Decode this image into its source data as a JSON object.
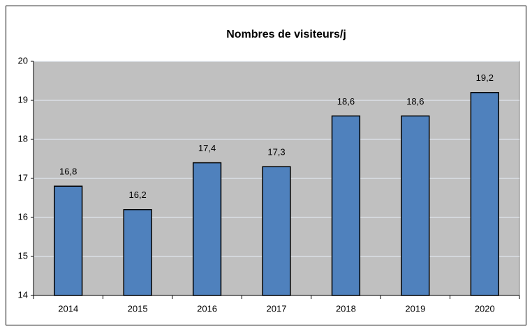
{
  "chart_data": {
    "type": "bar",
    "title": "Nombres de visiteurs/j",
    "categories": [
      "2014",
      "2015",
      "2016",
      "2017",
      "2018",
      "2019",
      "2020"
    ],
    "values": [
      16.8,
      16.2,
      17.4,
      17.3,
      18.6,
      18.6,
      19.2
    ],
    "value_labels": [
      "16,8",
      "16,2",
      "17,4",
      "17,3",
      "18,6",
      "18,6",
      "19,2"
    ],
    "color": "#4f81bd",
    "ylim": [
      14,
      20
    ],
    "yticks": [
      14,
      15,
      16,
      17,
      18,
      19,
      20
    ],
    "grid": true
  }
}
